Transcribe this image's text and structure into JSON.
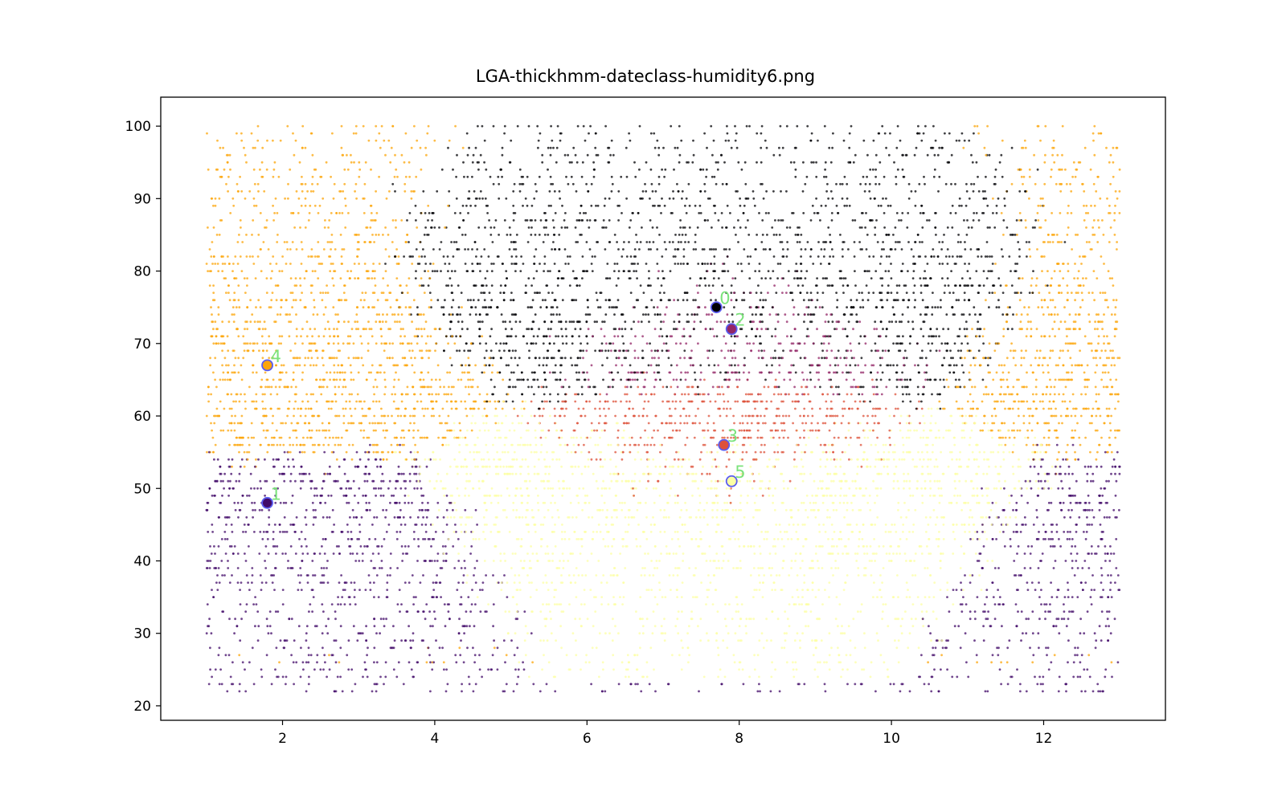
{
  "chart_data": {
    "type": "scatter",
    "title": "LGA-thickhmm-dateclass-humidity6.png",
    "xlabel": "",
    "ylabel": "",
    "xlim": [
      0.4,
      13.6
    ],
    "ylim": [
      18,
      104
    ],
    "x_ticks": [
      "2",
      "4",
      "6",
      "8",
      "10",
      "12"
    ],
    "y_ticks": [
      "20",
      "30",
      "40",
      "50",
      "60",
      "70",
      "80",
      "90",
      "100"
    ],
    "grid": false,
    "clusters": [
      {
        "label": "0",
        "color": "#000004",
        "center": [
          7.7,
          75
        ],
        "x_spread": 2.6,
        "y_spread": 8,
        "x_range": [
          1,
          13
        ],
        "y_range": [
          60,
          100
        ]
      },
      {
        "label": "1",
        "color": "#420a68",
        "center": [
          1.8,
          48
        ],
        "x_spread": 1.6,
        "y_spread": 6,
        "x_range": [
          1,
          13
        ],
        "y_range": [
          22,
          60
        ]
      },
      {
        "label": "2",
        "color": "#932667",
        "center": [
          7.9,
          72
        ],
        "x_spread": 1.6,
        "y_spread": 7,
        "x_range": [
          4,
          12
        ],
        "y_range": [
          55,
          95
        ]
      },
      {
        "label": "3",
        "color": "#dd513a",
        "center": [
          7.8,
          56
        ],
        "x_spread": 1.5,
        "y_spread": 7,
        "x_range": [
          5,
          11
        ],
        "y_range": [
          30,
          75
        ]
      },
      {
        "label": "4",
        "color": "#fca50a",
        "center": [
          1.8,
          67
        ],
        "x_spread": 1.7,
        "y_spread": 11,
        "x_range": [
          1,
          13
        ],
        "y_range": [
          26,
          100
        ]
      },
      {
        "label": "5",
        "color": "#fcffa4",
        "center": [
          7.9,
          51
        ],
        "x_spread": 2.8,
        "y_spread": 6,
        "x_range": [
          1,
          13
        ],
        "y_range": [
          24,
          68
        ]
      }
    ]
  }
}
